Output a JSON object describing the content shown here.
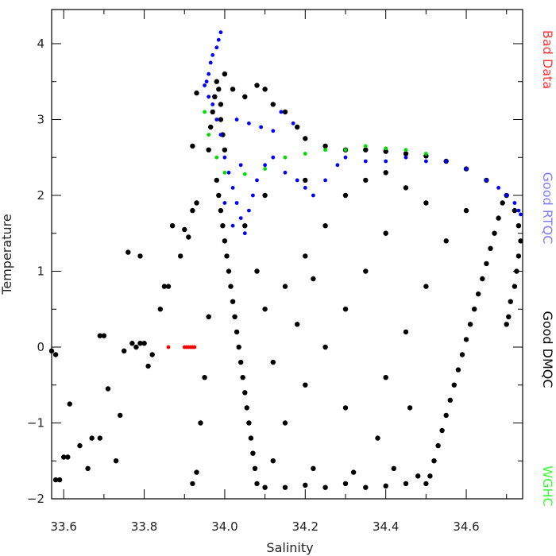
{
  "chart_data": {
    "type": "scatter",
    "xlabel": "Salinity",
    "ylabel": "Temperature",
    "xlim": [
      33.57,
      34.74
    ],
    "ylim": [
      -2,
      4.45
    ],
    "grid": false,
    "x_ticks": [
      "33.6",
      "33.8",
      "34.0",
      "34.2",
      "34.4",
      "34.6"
    ],
    "y_ticks": [
      "-2",
      "-1",
      "0",
      "1",
      "2",
      "3",
      "4"
    ],
    "legend_placement": "right-vertical",
    "legend": [
      {
        "label": "Bad Data",
        "color": "#ff3333"
      },
      {
        "label": "Good RTQC",
        "color": "#7f7fff"
      },
      {
        "label": "Good DMQC",
        "color": "#000000"
      },
      {
        "label": "WGHC",
        "color": "#33ff33"
      }
    ],
    "series": [
      {
        "name": "Bad Data",
        "color": "#ff0000",
        "points": [
          [
            33.86,
            0.0
          ],
          [
            33.9,
            0.0
          ],
          [
            33.905,
            0.0
          ],
          [
            33.91,
            0.0
          ],
          [
            33.915,
            0.0
          ],
          [
            33.92,
            0.0
          ],
          [
            33.925,
            0.0
          ]
        ]
      },
      {
        "name": "Good DMQC",
        "color": "#000000",
        "points": [
          [
            33.57,
            -0.05
          ],
          [
            33.58,
            -1.75
          ],
          [
            33.59,
            -1.75
          ],
          [
            33.58,
            -0.1
          ],
          [
            33.6,
            -1.45
          ],
          [
            33.61,
            -1.45
          ],
          [
            33.615,
            -0.75
          ],
          [
            33.64,
            -1.3
          ],
          [
            33.66,
            -1.6
          ],
          [
            33.67,
            -1.2
          ],
          [
            33.69,
            -1.2
          ],
          [
            33.69,
            0.15
          ],
          [
            33.7,
            0.15
          ],
          [
            33.71,
            -0.55
          ],
          [
            33.73,
            -1.5
          ],
          [
            33.74,
            -0.9
          ],
          [
            33.75,
            -0.05
          ],
          [
            33.77,
            0.05
          ],
          [
            33.78,
            0.0
          ],
          [
            33.79,
            0.05
          ],
          [
            33.8,
            0.05
          ],
          [
            33.81,
            -0.25
          ],
          [
            33.82,
            -0.1
          ],
          [
            33.76,
            1.25
          ],
          [
            33.79,
            1.2
          ],
          [
            33.84,
            0.5
          ],
          [
            33.85,
            0.8
          ],
          [
            33.86,
            0.8
          ],
          [
            33.87,
            1.6
          ],
          [
            33.89,
            1.2
          ],
          [
            33.9,
            1.55
          ],
          [
            33.91,
            1.45
          ],
          [
            33.92,
            1.8
          ],
          [
            33.92,
            2.65
          ],
          [
            33.93,
            3.35
          ],
          [
            33.93,
            1.9
          ],
          [
            33.92,
            -1.8
          ],
          [
            33.93,
            -1.65
          ],
          [
            33.94,
            -1.0
          ],
          [
            33.95,
            -0.4
          ],
          [
            33.96,
            0.4
          ],
          [
            33.96,
            2.6
          ],
          [
            33.965,
            2.9
          ],
          [
            33.97,
            3.1
          ],
          [
            33.975,
            3.3
          ],
          [
            33.98,
            3.5
          ],
          [
            33.985,
            3.4
          ],
          [
            33.99,
            3.2
          ],
          [
            33.99,
            3.0
          ],
          [
            33.995,
            2.8
          ],
          [
            34.0,
            2.6
          ],
          [
            34.0,
            3.6
          ],
          [
            33.98,
            2.2
          ],
          [
            33.985,
            2.0
          ],
          [
            33.99,
            1.8
          ],
          [
            33.995,
            1.6
          ],
          [
            34.0,
            1.4
          ],
          [
            34.005,
            1.2
          ],
          [
            34.01,
            1.0
          ],
          [
            34.015,
            0.8
          ],
          [
            34.02,
            0.6
          ],
          [
            34.025,
            0.4
          ],
          [
            34.03,
            0.2
          ],
          [
            34.035,
            0.0
          ],
          [
            34.04,
            -0.2
          ],
          [
            34.045,
            -0.4
          ],
          [
            34.05,
            -0.6
          ],
          [
            34.055,
            -0.8
          ],
          [
            34.06,
            -1.0
          ],
          [
            34.065,
            -1.2
          ],
          [
            34.07,
            -1.4
          ],
          [
            34.075,
            -1.6
          ],
          [
            34.08,
            -1.8
          ],
          [
            34.02,
            3.4
          ],
          [
            34.05,
            3.3
          ],
          [
            34.08,
            3.45
          ],
          [
            34.1,
            3.4
          ],
          [
            34.12,
            3.2
          ],
          [
            34.15,
            3.1
          ],
          [
            34.18,
            2.9
          ],
          [
            34.2,
            2.75
          ],
          [
            34.25,
            2.65
          ],
          [
            34.3,
            2.6
          ],
          [
            34.35,
            2.6
          ],
          [
            34.4,
            2.58
          ],
          [
            34.45,
            2.55
          ],
          [
            34.5,
            2.52
          ],
          [
            34.55,
            2.45
          ],
          [
            34.6,
            2.35
          ],
          [
            34.65,
            2.2
          ],
          [
            34.7,
            2.0
          ],
          [
            34.72,
            1.8
          ],
          [
            34.73,
            1.6
          ],
          [
            34.735,
            1.4
          ],
          [
            34.73,
            1.2
          ],
          [
            34.725,
            1.0
          ],
          [
            34.72,
            0.8
          ],
          [
            34.71,
            0.6
          ],
          [
            34.705,
            0.4
          ],
          [
            34.7,
            0.3
          ],
          [
            34.69,
            1.9
          ],
          [
            34.68,
            1.7
          ],
          [
            34.67,
            1.5
          ],
          [
            34.66,
            1.3
          ],
          [
            34.65,
            1.1
          ],
          [
            34.64,
            0.9
          ],
          [
            34.63,
            0.7
          ],
          [
            34.62,
            0.5
          ],
          [
            34.61,
            0.3
          ],
          [
            34.6,
            0.1
          ],
          [
            34.59,
            -0.1
          ],
          [
            34.58,
            -0.3
          ],
          [
            34.57,
            -0.5
          ],
          [
            34.56,
            -0.7
          ],
          [
            34.55,
            -0.9
          ],
          [
            34.54,
            -1.1
          ],
          [
            34.53,
            -1.3
          ],
          [
            34.52,
            -1.5
          ],
          [
            34.51,
            -1.7
          ],
          [
            34.5,
            -1.8
          ],
          [
            34.1,
            -1.85
          ],
          [
            34.15,
            -1.85
          ],
          [
            34.2,
            -1.82
          ],
          [
            34.25,
            -1.85
          ],
          [
            34.3,
            -1.8
          ],
          [
            34.35,
            -1.85
          ],
          [
            34.4,
            -1.83
          ],
          [
            34.45,
            -1.8
          ],
          [
            34.48,
            -1.7
          ],
          [
            34.42,
            -1.6
          ],
          [
            34.32,
            -1.65
          ],
          [
            34.22,
            -1.6
          ],
          [
            34.12,
            -1.5
          ],
          [
            34.1,
            0.5
          ],
          [
            34.15,
            0.8
          ],
          [
            34.2,
            1.2
          ],
          [
            34.25,
            1.6
          ],
          [
            34.3,
            2.0
          ],
          [
            34.35,
            2.2
          ],
          [
            34.4,
            2.3
          ],
          [
            34.45,
            2.1
          ],
          [
            34.5,
            1.9
          ],
          [
            34.4,
            1.5
          ],
          [
            34.35,
            1.0
          ],
          [
            34.3,
            0.5
          ],
          [
            34.25,
            0.0
          ],
          [
            34.2,
            -0.5
          ],
          [
            34.15,
            -1.0
          ],
          [
            34.3,
            -0.8
          ],
          [
            34.4,
            -0.4
          ],
          [
            34.45,
            0.2
          ],
          [
            34.5,
            0.8
          ],
          [
            34.55,
            1.4
          ],
          [
            34.6,
            1.8
          ],
          [
            34.38,
            -1.2
          ],
          [
            34.46,
            -0.8
          ],
          [
            34.2,
            2.2
          ],
          [
            34.1,
            2.0
          ],
          [
            34.05,
            1.6
          ],
          [
            34.08,
            1.0
          ],
          [
            34.12,
            -0.2
          ],
          [
            34.18,
            0.3
          ],
          [
            34.22,
            0.9
          ]
        ]
      },
      {
        "name": "Good RTQC",
        "color": "#0000ff",
        "points": [
          [
            33.99,
            4.15
          ],
          [
            33.985,
            4.05
          ],
          [
            33.98,
            3.95
          ],
          [
            33.97,
            3.85
          ],
          [
            33.965,
            3.75
          ],
          [
            33.96,
            3.6
          ],
          [
            33.955,
            3.5
          ],
          [
            33.95,
            3.45
          ],
          [
            33.96,
            3.3
          ],
          [
            33.97,
            3.2
          ],
          [
            33.98,
            3.0
          ],
          [
            33.99,
            2.8
          ],
          [
            34.0,
            2.5
          ],
          [
            34.01,
            2.3
          ],
          [
            34.02,
            2.1
          ],
          [
            34.03,
            1.9
          ],
          [
            34.04,
            1.7
          ],
          [
            34.05,
            1.5
          ],
          [
            34.06,
            1.8
          ],
          [
            34.07,
            2.0
          ],
          [
            34.08,
            2.2
          ],
          [
            34.1,
            2.4
          ],
          [
            34.12,
            2.5
          ],
          [
            34.15,
            2.3
          ],
          [
            34.18,
            2.2
          ],
          [
            34.2,
            2.1
          ],
          [
            34.22,
            2.0
          ],
          [
            34.25,
            2.2
          ],
          [
            34.28,
            2.4
          ],
          [
            34.3,
            2.5
          ],
          [
            34.35,
            2.45
          ],
          [
            34.4,
            2.45
          ],
          [
            34.45,
            2.5
          ],
          [
            34.5,
            2.45
          ],
          [
            34.55,
            2.45
          ],
          [
            34.6,
            2.35
          ],
          [
            34.65,
            2.2
          ],
          [
            34.68,
            2.1
          ],
          [
            34.7,
            2.0
          ],
          [
            34.72,
            1.9
          ],
          [
            34.73,
            1.8
          ],
          [
            34.735,
            1.75
          ],
          [
            34.03,
            3.0
          ],
          [
            34.06,
            2.95
          ],
          [
            34.09,
            2.9
          ],
          [
            34.12,
            2.85
          ],
          [
            34.14,
            3.1
          ],
          [
            34.17,
            2.95
          ],
          [
            34.0,
            1.9
          ],
          [
            34.02,
            1.6
          ],
          [
            34.04,
            2.4
          ]
        ]
      },
      {
        "name": "WGHC",
        "color": "#00dd00",
        "points": [
          [
            33.95,
            3.1
          ],
          [
            33.96,
            2.8
          ],
          [
            33.98,
            2.5
          ],
          [
            34.0,
            2.3
          ],
          [
            34.05,
            2.28
          ],
          [
            34.1,
            2.35
          ],
          [
            34.15,
            2.5
          ],
          [
            34.2,
            2.55
          ],
          [
            34.25,
            2.6
          ],
          [
            34.3,
            2.6
          ],
          [
            34.35,
            2.65
          ],
          [
            34.4,
            2.62
          ],
          [
            34.45,
            2.6
          ],
          [
            34.5,
            2.55
          ]
        ]
      }
    ]
  }
}
